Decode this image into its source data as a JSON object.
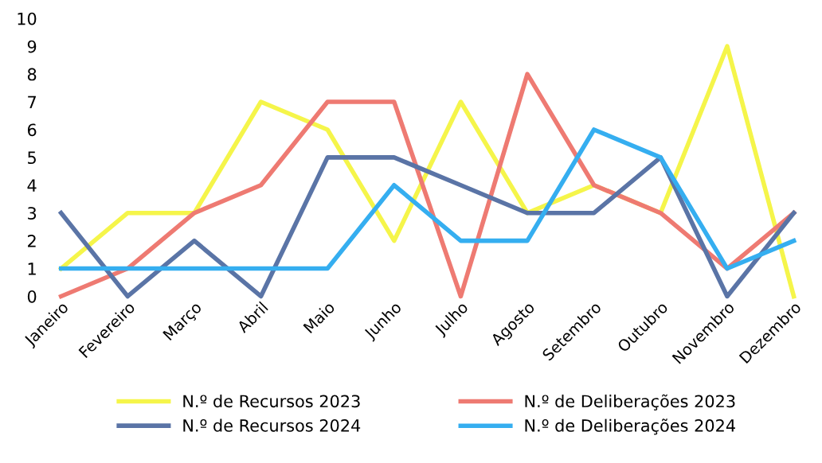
{
  "chart_data": {
    "type": "line",
    "categories": [
      "Janeiro",
      "Fevereiro",
      "Março",
      "Abril",
      "Maio",
      "Junho",
      "Julho",
      "Agosto",
      "Setembro",
      "Outubro",
      "Novembro",
      "Dezembro"
    ],
    "series": [
      {
        "name": "N.º de Recursos 2023",
        "color": "#f5f54a",
        "values": [
          1,
          3,
          3,
          7,
          6,
          2,
          7,
          3,
          4,
          3,
          9,
          0
        ]
      },
      {
        "name": "N.º de Deliberações 2023",
        "color": "#ee7a72",
        "values": [
          0,
          1,
          3,
          4,
          7,
          7,
          0,
          8,
          4,
          3,
          1,
          3
        ]
      },
      {
        "name": "N.º de Recursos 2024",
        "color": "#5a74a6",
        "values": [
          3,
          0,
          2,
          0,
          5,
          5,
          4,
          3,
          3,
          5,
          0,
          3
        ]
      },
      {
        "name": "N.º de Deliberações 2024",
        "color": "#35aef0",
        "values": [
          1,
          1,
          1,
          1,
          1,
          4,
          2,
          2,
          6,
          5,
          1,
          2
        ]
      }
    ],
    "ylim": [
      0,
      10
    ],
    "yticks": [
      0,
      1,
      2,
      3,
      4,
      5,
      6,
      7,
      8,
      9,
      10
    ],
    "grid": false,
    "legend": "bottom",
    "marker": "none",
    "line_style": "solid"
  }
}
